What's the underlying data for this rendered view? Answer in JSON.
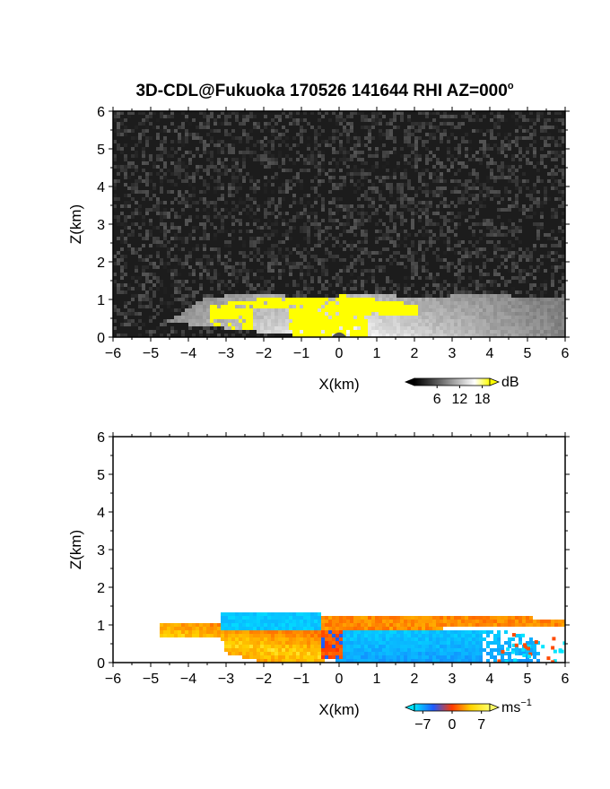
{
  "title": {
    "main": "3D-CDL@Fukuoka 170526 141644 RHI AZ=000",
    "degree": "o"
  },
  "chart_data": [
    {
      "type": "heatmap",
      "panel": "top",
      "quantity": "signal intensity",
      "xlabel": "X(km)",
      "ylabel": "Z(km)",
      "xlim": [
        -6,
        6
      ],
      "ylim": [
        0,
        6
      ],
      "x_ticks": [
        -6,
        -5,
        -4,
        -3,
        -2,
        -1,
        0,
        1,
        2,
        3,
        4,
        5,
        6
      ],
      "y_ticks": [
        0,
        1,
        2,
        3,
        4,
        5,
        6
      ],
      "grid": false,
      "colorbar": {
        "unit": "dB",
        "ticks": [
          6,
          12,
          18
        ],
        "range": [
          0,
          20
        ],
        "colors": [
          "#000000",
          "#ffffff",
          "#ffff00"
        ]
      },
      "regions": {
        "echo_layer_top_km": 1.1,
        "echo_layer_x_range_km": [
          -4.8,
          6
        ],
        "saturated_x_range_km": [
          -3.4,
          2.1
        ],
        "saturated_top_km": 1.2,
        "background": "noise"
      }
    },
    {
      "type": "heatmap",
      "panel": "bottom",
      "quantity": "radial velocity",
      "xlabel": "X(km)",
      "ylabel": "Z(km)",
      "xlim": [
        -6,
        6
      ],
      "ylim": [
        0,
        6
      ],
      "x_ticks": [
        -6,
        -5,
        -4,
        -3,
        -2,
        -1,
        0,
        1,
        2,
        3,
        4,
        5,
        6
      ],
      "y_ticks": [
        0,
        1,
        2,
        3,
        4,
        5,
        6
      ],
      "grid": false,
      "colorbar": {
        "unit": "ms",
        "unit_exp": "-1",
        "ticks": [
          -7,
          0,
          7
        ],
        "range": [
          -9,
          9
        ],
        "colors": [
          "#00e5ff",
          "#1e5aff",
          "#ff3a00",
          "#ffd400",
          "#ffff66"
        ]
      },
      "regions": {
        "left_positive_x_range_km": [
          -4.8,
          -0.2
        ],
        "upper_negative_x_range_km": [
          -3.1,
          -0.5
        ],
        "upper_negative_z_range_km": [
          0.9,
          1.35
        ],
        "right_upper_positive_x_range_km": [
          -0.5,
          6
        ],
        "right_upper_positive_z_range_km": [
          0.9,
          1.3
        ],
        "right_lower_negative_x_range_km": [
          0,
          5.3
        ],
        "right_lower_negative_z_range_km": [
          0,
          0.9
        ]
      }
    }
  ]
}
